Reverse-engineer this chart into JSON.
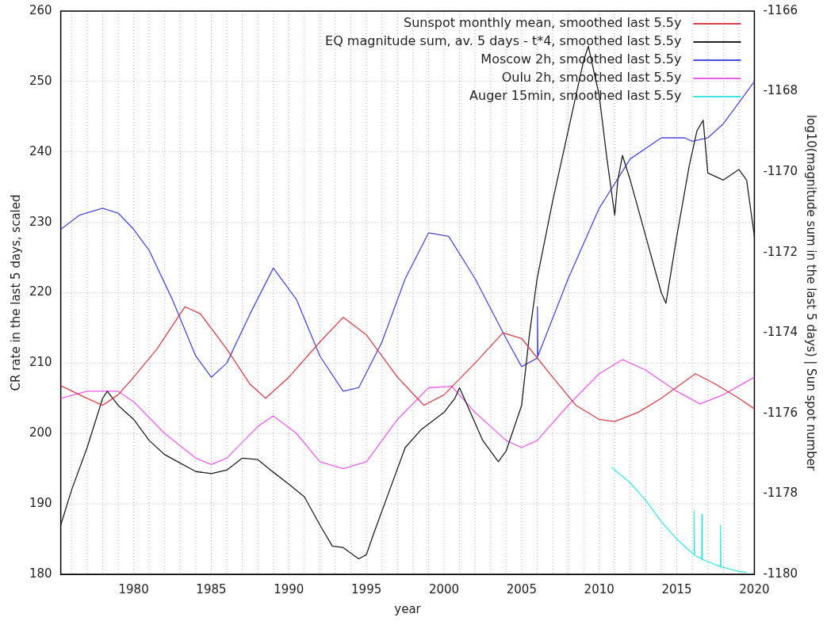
{
  "chart_data": {
    "type": "line",
    "xlabel": "year",
    "ylabel": "CR rate in the last 5 days, scaled",
    "y2label": "log10(magnitude sum in the last 5 days) | Sun spot number",
    "xlim": [
      1975.3,
      2020
    ],
    "xticks": [
      {
        "value": 1976,
        "label": null
      },
      {
        "value": 1977,
        "label": null
      },
      {
        "value": 1978,
        "label": null
      },
      {
        "value": 1979,
        "label": null
      },
      1980,
      {
        "value": 1981,
        "label": null
      },
      {
        "value": 1982,
        "label": null
      },
      {
        "value": 1983,
        "label": null
      },
      {
        "value": 1984,
        "label": null
      },
      1985,
      {
        "value": 1986,
        "label": null
      },
      {
        "value": 1987,
        "label": null
      },
      {
        "value": 1988,
        "label": null
      },
      {
        "value": 1989,
        "label": null
      },
      1990,
      {
        "value": 1991,
        "label": null
      },
      {
        "value": 1992,
        "label": null
      },
      {
        "value": 1993,
        "label": null
      },
      {
        "value": 1994,
        "label": null
      },
      1995,
      {
        "value": 1996,
        "label": null
      },
      {
        "value": 1997,
        "label": null
      },
      {
        "value": 1998,
        "label": null
      },
      {
        "value": 1999,
        "label": null
      },
      2000,
      {
        "value": 2001,
        "label": null
      },
      {
        "value": 2002,
        "label": null
      },
      {
        "value": 2003,
        "label": null
      },
      {
        "value": 2004,
        "label": null
      },
      2005,
      {
        "value": 2006,
        "label": null
      },
      {
        "value": 2007,
        "label": null
      },
      {
        "value": 2008,
        "label": null
      },
      {
        "value": 2009,
        "label": null
      },
      2010,
      {
        "value": 2011,
        "label": null
      },
      {
        "value": 2012,
        "label": null
      },
      {
        "value": 2013,
        "label": null
      },
      {
        "value": 2014,
        "label": null
      },
      2015,
      {
        "value": 2016,
        "label": null
      },
      {
        "value": 2017,
        "label": null
      },
      {
        "value": 2018,
        "label": null
      },
      {
        "value": 2019,
        "label": null
      },
      2020
    ],
    "ylim": [
      180,
      260
    ],
    "yticks": [
      180,
      190,
      200,
      210,
      220,
      230,
      240,
      250,
      260
    ],
    "y2lim": [
      -1180,
      -1166
    ],
    "y2ticks": [
      -1180,
      -1178,
      -1176,
      -1174,
      -1172,
      -1170,
      -1168,
      -1166
    ],
    "grid": true,
    "legend": "top right",
    "marker": "none",
    "line_style": "solid",
    "series": [
      {
        "name": "Sunspot monthly mean, smoothed last 5.5y",
        "color": "#d8404a",
        "x": [
          1975.3,
          1977,
          1978,
          1979,
          1980,
          1981.5,
          1983.3,
          1984.3,
          1986,
          1987.5,
          1988.5,
          1990,
          1992,
          1993.5,
          1995,
          1997,
          1998.7,
          2000,
          2002,
          2003.8,
          2005,
          2007,
          2008.5,
          2010,
          2011,
          2012.5,
          2014,
          2016.2,
          2017.5,
          2019,
          2020
        ],
        "values": [
          206.8,
          205,
          204,
          205.5,
          208,
          212,
          218,
          217,
          212,
          207,
          205,
          208,
          213,
          216.5,
          214,
          208,
          204,
          205.5,
          210,
          214.3,
          213.5,
          208,
          204,
          202,
          201.7,
          203,
          205,
          208.5,
          207,
          205,
          203.5
        ]
      },
      {
        "name": "EQ magnitude sum, av. 5 days - t*4, smoothed last 5.5y",
        "color": "#202020",
        "x": [
          1975.3,
          1976,
          1977,
          1978,
          1978.3,
          1979,
          1980,
          1981,
          1982,
          1983,
          1984,
          1985,
          1986,
          1987,
          1988,
          1989,
          1990,
          1991,
          1992,
          1992.8,
          1993.5,
          1994.5,
          1995,
          1995.5,
          1996.5,
          1997.5,
          1998.5,
          2000,
          2000.7,
          2001,
          2001.5,
          2002.5,
          2003.5,
          2004,
          2005,
          2005.5,
          2006,
          2007,
          2008,
          2009,
          2009.3,
          2009.7,
          2010,
          2010.5,
          2011,
          2011.2,
          2011.5,
          2012,
          2013,
          2014,
          2014.3,
          2015,
          2015.8,
          2016.3,
          2016.7,
          2017,
          2018,
          2019,
          2019.5,
          2020
        ],
        "values": [
          187,
          192,
          198,
          205,
          206,
          204,
          202,
          199,
          197,
          195.8,
          194.6,
          194.3,
          194.8,
          196.5,
          196.3,
          194.5,
          192.8,
          191,
          187,
          184,
          183.8,
          182.2,
          182.8,
          186,
          192,
          198,
          200.5,
          203,
          205,
          206.5,
          204,
          199,
          196,
          197.5,
          204,
          214,
          222,
          233,
          243,
          253,
          255,
          251,
          248,
          239,
          231,
          236,
          239.5,
          236,
          228,
          220,
          218.5,
          228,
          238,
          243,
          244.5,
          237,
          236,
          237.5,
          236,
          228
        ]
      },
      {
        "name": "Moscow 2h, smoothed last 5.5y",
        "color": "#4a4ade",
        "x": [
          1975.3,
          1976.5,
          1978,
          1979,
          1980,
          1981,
          1982.5,
          1984,
          1985,
          1986,
          1987.5,
          1989,
          1990.5,
          1992,
          1993.5,
          1994.5,
          1996,
          1997.5,
          1999,
          2000.3,
          2002,
          2004,
          2005,
          2006,
          2006.02,
          2006.05,
          2008,
          2010,
          2012,
          2014,
          2015.5,
          2016,
          2017,
          2018,
          2019,
          2020
        ],
        "values": [
          229,
          231,
          232,
          231.3,
          229,
          226,
          219,
          211,
          208,
          210,
          217,
          223.5,
          219,
          211,
          206,
          206.5,
          213,
          222,
          228.5,
          228,
          222,
          213.5,
          209.5,
          210.7,
          218,
          211,
          222,
          232,
          239,
          242,
          242,
          241.5,
          242,
          244,
          247,
          250
        ]
      },
      {
        "name": "Oulu 2h, smoothed last 5.5y",
        "color": "#ee5cee",
        "x": [
          1975.3,
          1977,
          1979,
          1980,
          1982,
          1984,
          1985,
          1986,
          1988,
          1989,
          1990.5,
          1992,
          1993.5,
          1995,
          1997,
          1999,
          2000.5,
          2002,
          2004,
          2005,
          2006,
          2008,
          2010,
          2011.5,
          2013,
          2015,
          2016.5,
          2018,
          2020
        ],
        "values": [
          205,
          206,
          206,
          204.5,
          200,
          196.5,
          195.6,
          196.5,
          201,
          202.5,
          200,
          196,
          195,
          196,
          202,
          206.5,
          206.7,
          203,
          199,
          198,
          199,
          204,
          208.5,
          210.5,
          209,
          206,
          204.2,
          205.5,
          208
        ]
      },
      {
        "name": "Auger 15min, smoothed last 5.5y",
        "color": "#40e6e6",
        "x": [
          2010.8,
          2012,
          2013,
          2014,
          2015,
          2016,
          2016.1,
          2016.12,
          2016.15,
          2016.6,
          2016.62,
          2016.65,
          2017,
          2017.8,
          2017.82,
          2017.85,
          2018,
          2019,
          2019.5
        ],
        "values": [
          195.2,
          193,
          190.5,
          187.5,
          185,
          183,
          182.8,
          189,
          182.7,
          182.2,
          188.5,
          182.1,
          181.8,
          181.1,
          187,
          181,
          181,
          180.4,
          180.3
        ]
      }
    ]
  }
}
